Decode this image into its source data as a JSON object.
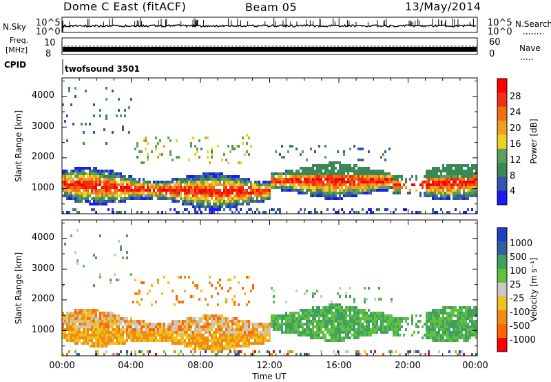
{
  "header": {
    "title": "Dome C East (fitACF)",
    "beam": "Beam 05",
    "date": "13/May/2014"
  },
  "strips": {
    "nsky_label": "N.Sky",
    "nsky_top": "10^5",
    "nsky_bottom": "10^0",
    "nsearch_label": "N.Search",
    "freq_label_line1": "Freq.",
    "freq_label_line2": "[MHz]",
    "freq_top": "10",
    "freq_bottom": "8",
    "nave_label": "Nave",
    "nave_top": "60",
    "nave_bottom": "0",
    "cpid_label": "CPID",
    "cpid_value": "twofsound 3501"
  },
  "colors": {
    "power": [
      "#1a1aff",
      "#3355aa",
      "#3a8855",
      "#5aa05a",
      "#f0d020",
      "#f0a020",
      "#f07010",
      "#f03010",
      "#ff0000"
    ],
    "velocity": [
      "#ff0000",
      "#ff6600",
      "#f08c10",
      "#f0c020",
      "#c8c8c8",
      "#60c040",
      "#40a060",
      "#3060a0",
      "#2040c0"
    ]
  },
  "chart_data": [
    {
      "type": "heatmap",
      "name": "power",
      "ylabel": "Slant Range [km]",
      "xlabel": "",
      "xlim": [
        0,
        24
      ],
      "ylim": [
        180,
        4600
      ],
      "yticks": [
        1000,
        2000,
        3000,
        4000
      ],
      "colorbar": {
        "label": "Power [dB]",
        "range": [
          0,
          32
        ],
        "tick_labels": [
          "4",
          "8",
          "12",
          "16",
          "20",
          "24",
          "28"
        ]
      }
    },
    {
      "type": "heatmap",
      "name": "velocity",
      "ylabel": "Slant Range [km]",
      "xlabel": "Time UT",
      "xlim": [
        0,
        24
      ],
      "ylim": [
        180,
        4600
      ],
      "yticks": [
        1000,
        2000,
        3000,
        4000
      ],
      "xtick_labels": [
        "00:00",
        "04:00",
        "08:00",
        "12:00",
        "16:00",
        "20:00",
        "00:00"
      ],
      "colorbar": {
        "label": "Velocity [m s⁻¹]",
        "tick_labels": [
          "1000",
          "500",
          "100",
          "25",
          "-25",
          "-100",
          "-500",
          "-1000"
        ]
      }
    }
  ]
}
